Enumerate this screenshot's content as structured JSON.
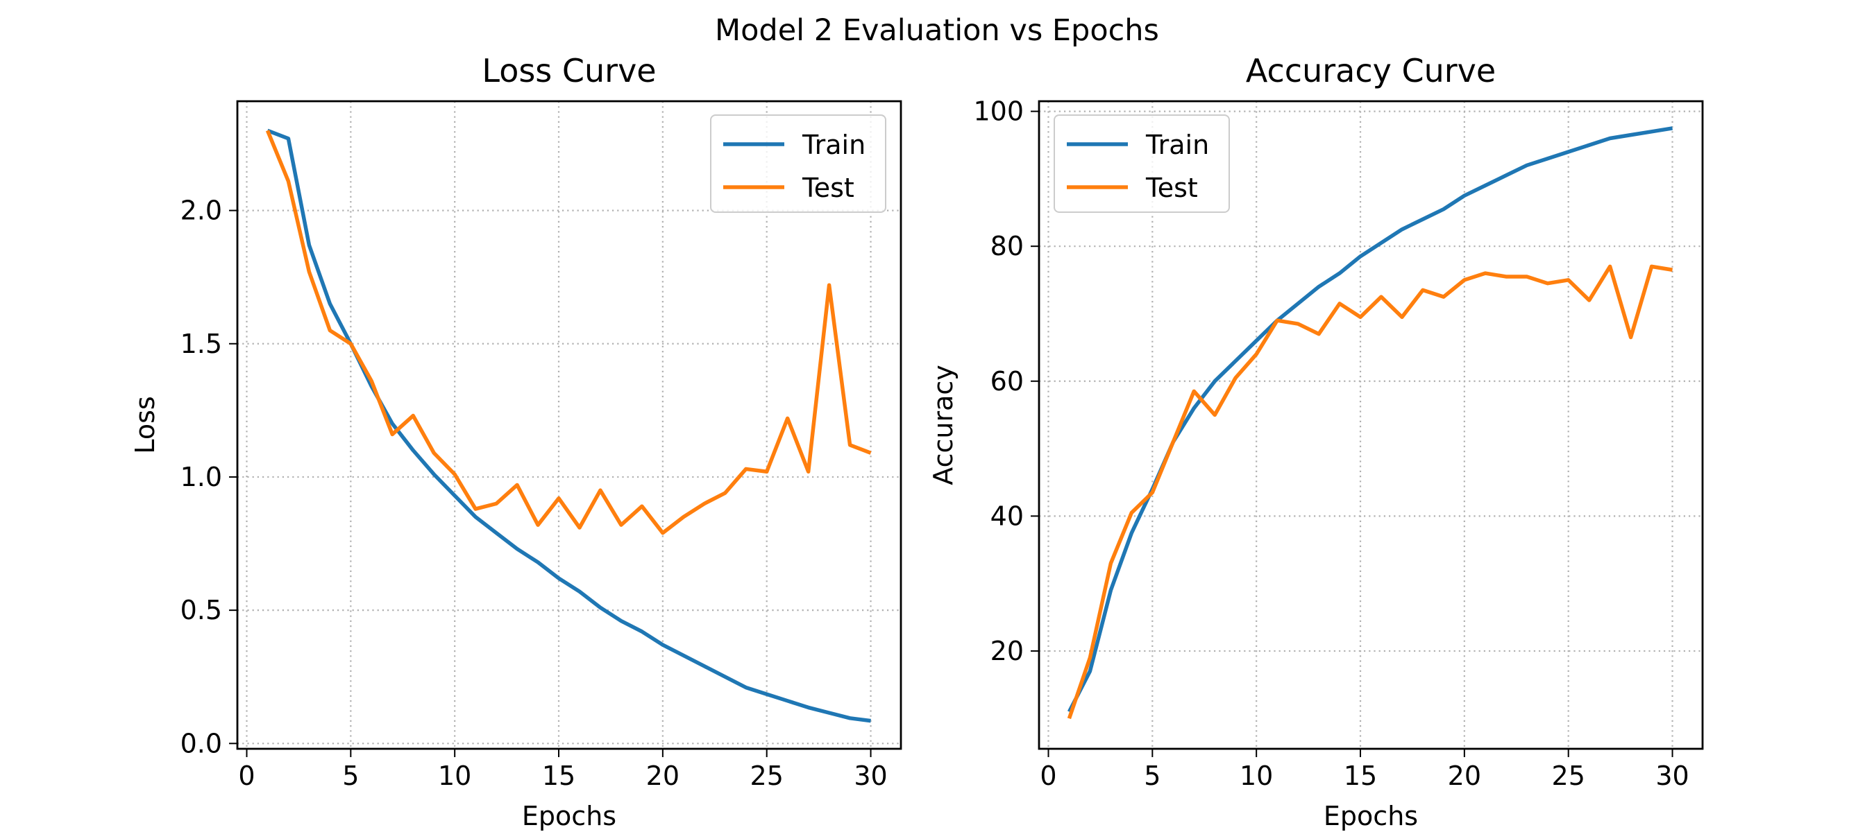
{
  "figure": {
    "suptitle": "Model 2 Evaluation vs Epochs"
  },
  "colors": {
    "Train": "#1f77b4",
    "Test": "#ff7f0e"
  },
  "chart_data": [
    {
      "type": "line",
      "title": "Loss Curve",
      "xlabel": "Epochs",
      "ylabel": "Loss",
      "xlim": [
        -0.45,
        31.45
      ],
      "ylim": [
        -0.02,
        2.41
      ],
      "xticks": [
        0,
        5,
        10,
        15,
        20,
        25,
        30
      ],
      "xtick_labels": [
        "0",
        "5",
        "10",
        "15",
        "20",
        "25",
        "30"
      ],
      "yticks": [
        0.0,
        0.5,
        1.0,
        1.5,
        2.0
      ],
      "ytick_labels": [
        "0.0",
        "0.5",
        "1.0",
        "1.5",
        "2.0"
      ],
      "grid": true,
      "legend_position": "upper right",
      "x": [
        1,
        2,
        3,
        4,
        5,
        6,
        7,
        8,
        9,
        10,
        11,
        12,
        13,
        14,
        15,
        16,
        17,
        18,
        19,
        20,
        21,
        22,
        23,
        24,
        25,
        26,
        27,
        28,
        29,
        30
      ],
      "series": [
        {
          "name": "Train",
          "values": [
            2.3,
            2.27,
            1.87,
            1.65,
            1.5,
            1.34,
            1.2,
            1.1,
            1.01,
            0.93,
            0.85,
            0.79,
            0.73,
            0.68,
            0.62,
            0.57,
            0.51,
            0.46,
            0.42,
            0.37,
            0.33,
            0.29,
            0.25,
            0.21,
            0.185,
            0.16,
            0.135,
            0.115,
            0.095,
            0.085
          ]
        },
        {
          "name": "Test",
          "values": [
            2.3,
            2.11,
            1.77,
            1.55,
            1.5,
            1.36,
            1.16,
            1.23,
            1.09,
            1.01,
            0.88,
            0.9,
            0.97,
            0.82,
            0.92,
            0.81,
            0.95,
            0.82,
            0.89,
            0.79,
            0.85,
            0.9,
            0.94,
            1.03,
            1.02,
            1.22,
            1.02,
            1.72,
            1.12,
            1.09
          ]
        }
      ]
    },
    {
      "type": "line",
      "title": "Accuracy Curve",
      "xlabel": "Epochs",
      "ylabel": "Accuracy",
      "xlim": [
        -0.45,
        31.45
      ],
      "ylim": [
        5.5,
        101.5
      ],
      "xticks": [
        0,
        5,
        10,
        15,
        20,
        25,
        30
      ],
      "xtick_labels": [
        "0",
        "5",
        "10",
        "15",
        "20",
        "25",
        "30"
      ],
      "yticks": [
        20,
        40,
        60,
        80,
        100
      ],
      "ytick_labels": [
        "20",
        "40",
        "60",
        "80",
        "100"
      ],
      "grid": true,
      "legend_position": "upper left",
      "x": [
        1,
        2,
        3,
        4,
        5,
        6,
        7,
        8,
        9,
        10,
        11,
        12,
        13,
        14,
        15,
        16,
        17,
        18,
        19,
        20,
        21,
        22,
        23,
        24,
        25,
        26,
        27,
        28,
        29,
        30
      ],
      "series": [
        {
          "name": "Train",
          "values": [
            11,
            17,
            29,
            37.5,
            44,
            51,
            56,
            60,
            63,
            66,
            69,
            71.5,
            74,
            76,
            78.5,
            80.5,
            82.5,
            84,
            85.5,
            87.5,
            89,
            90.5,
            92,
            93,
            94,
            95,
            96,
            96.5,
            97,
            97.5
          ]
        },
        {
          "name": "Test",
          "values": [
            10,
            19,
            33,
            40.5,
            43.5,
            51,
            58.5,
            55,
            60.5,
            64,
            69,
            68.5,
            67,
            71.5,
            69.5,
            72.5,
            69.5,
            73.5,
            72.5,
            75,
            76,
            75.5,
            75.5,
            74.5,
            75,
            72,
            77,
            66.5,
            77,
            76.5
          ]
        }
      ]
    }
  ]
}
